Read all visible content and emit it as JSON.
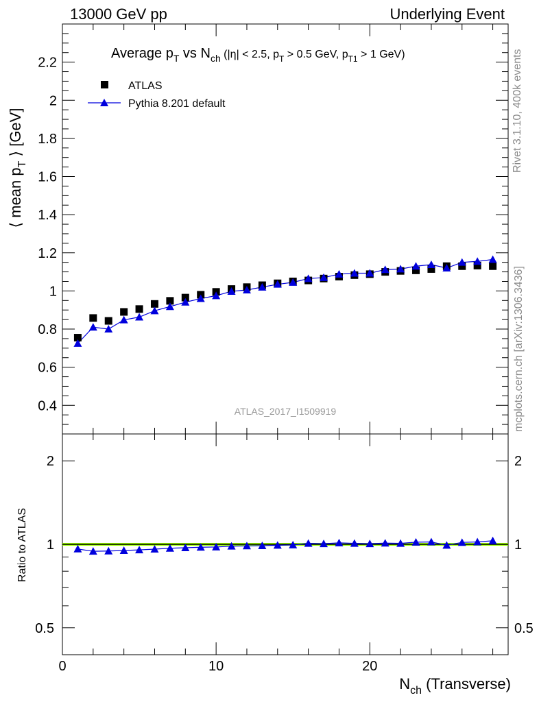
{
  "header": {
    "left": "13000 GeV pp",
    "right": "Underlying Event"
  },
  "side_labels": {
    "rivet": "Rivet 3.1.10,  400k events",
    "mcplots": "mcplots.cern.ch [arXiv:1306.3436]"
  },
  "chart_data": [
    {
      "type": "scatter",
      "panel": "main",
      "title_parts": {
        "t1": "Average p",
        "t1s": "T",
        "t2": " vs N",
        "t2s": "ch",
        "t3": " (|η| < 2.5, p",
        "t3s": "T",
        "t4": " > 0.5 GeV, p",
        "t4s": "T1",
        "t5": " > 1 GeV)"
      },
      "ylabel_parts": {
        "a": "⟨ mean p",
        "s": "T",
        "b": " ⟩ [GeV]"
      },
      "watermark": "ATLAS_2017_I1509919",
      "xlim": [
        0,
        29
      ],
      "ylim": [
        0.25,
        2.4
      ],
      "yticks": [
        0.4,
        0.6,
        0.8,
        1,
        1.2,
        1.4,
        1.6,
        1.8,
        2,
        2.2
      ],
      "ytick_labels": [
        "0.4",
        "0.6",
        "0.8",
        "1",
        "1.2",
        "1.4",
        "1.6",
        "1.8",
        "2",
        "2.2"
      ],
      "legend_position": "top-left",
      "x": [
        1,
        2,
        3,
        4,
        5,
        6,
        7,
        8,
        9,
        10,
        11,
        12,
        13,
        14,
        15,
        16,
        17,
        18,
        19,
        20,
        21,
        22,
        23,
        24,
        25,
        26,
        27,
        28
      ],
      "series": [
        {
          "name": "ATLAS",
          "marker": "square",
          "color": "#000000",
          "values": [
            0.755,
            0.858,
            0.843,
            0.89,
            0.905,
            0.932,
            0.948,
            0.965,
            0.98,
            0.995,
            1.01,
            1.02,
            1.03,
            1.04,
            1.05,
            1.055,
            1.065,
            1.075,
            1.083,
            1.088,
            1.1,
            1.105,
            1.108,
            1.115,
            1.13,
            1.13,
            1.133,
            1.13
          ]
        },
        {
          "name": "Pythia 8.201 default",
          "marker": "triangle",
          "color": "#0000dd",
          "values": [
            0.725,
            0.81,
            0.8,
            0.848,
            0.863,
            0.896,
            0.918,
            0.941,
            0.96,
            0.975,
            0.998,
            1.005,
            1.02,
            1.035,
            1.045,
            1.065,
            1.07,
            1.088,
            1.093,
            1.093,
            1.112,
            1.115,
            1.13,
            1.138,
            1.12,
            1.15,
            1.155,
            1.165
          ]
        }
      ]
    },
    {
      "type": "line",
      "panel": "ratio",
      "ylabel": "Ratio to ATLAS",
      "xlabel_parts": {
        "a": "N",
        "s": "ch",
        "b": " (Transverse)"
      },
      "xlim": [
        0,
        29
      ],
      "ylim": [
        0.4,
        2.5
      ],
      "log_y": true,
      "xticks": [
        0,
        10,
        20
      ],
      "xtick_labels": [
        "0",
        "10",
        "20"
      ],
      "yticks": [
        0.5,
        1,
        2
      ],
      "ytick_labels": [
        "0.5",
        "1",
        "2"
      ],
      "reference_band_color": "#99ff00",
      "x": [
        1,
        2,
        3,
        4,
        5,
        6,
        7,
        8,
        9,
        10,
        11,
        12,
        13,
        14,
        15,
        16,
        17,
        18,
        19,
        20,
        21,
        22,
        23,
        24,
        25,
        26,
        27,
        28
      ],
      "series": [
        {
          "name": "Pythia 8.201 default",
          "marker": "triangle",
          "color": "#0000dd",
          "values": [
            0.962,
            0.944,
            0.946,
            0.95,
            0.955,
            0.961,
            0.968,
            0.972,
            0.976,
            0.978,
            0.985,
            0.987,
            0.989,
            0.992,
            0.995,
            1.008,
            1.005,
            1.012,
            1.008,
            1.005,
            1.01,
            1.008,
            1.018,
            1.02,
            0.992,
            1.016,
            1.02,
            1.03
          ]
        }
      ]
    }
  ]
}
